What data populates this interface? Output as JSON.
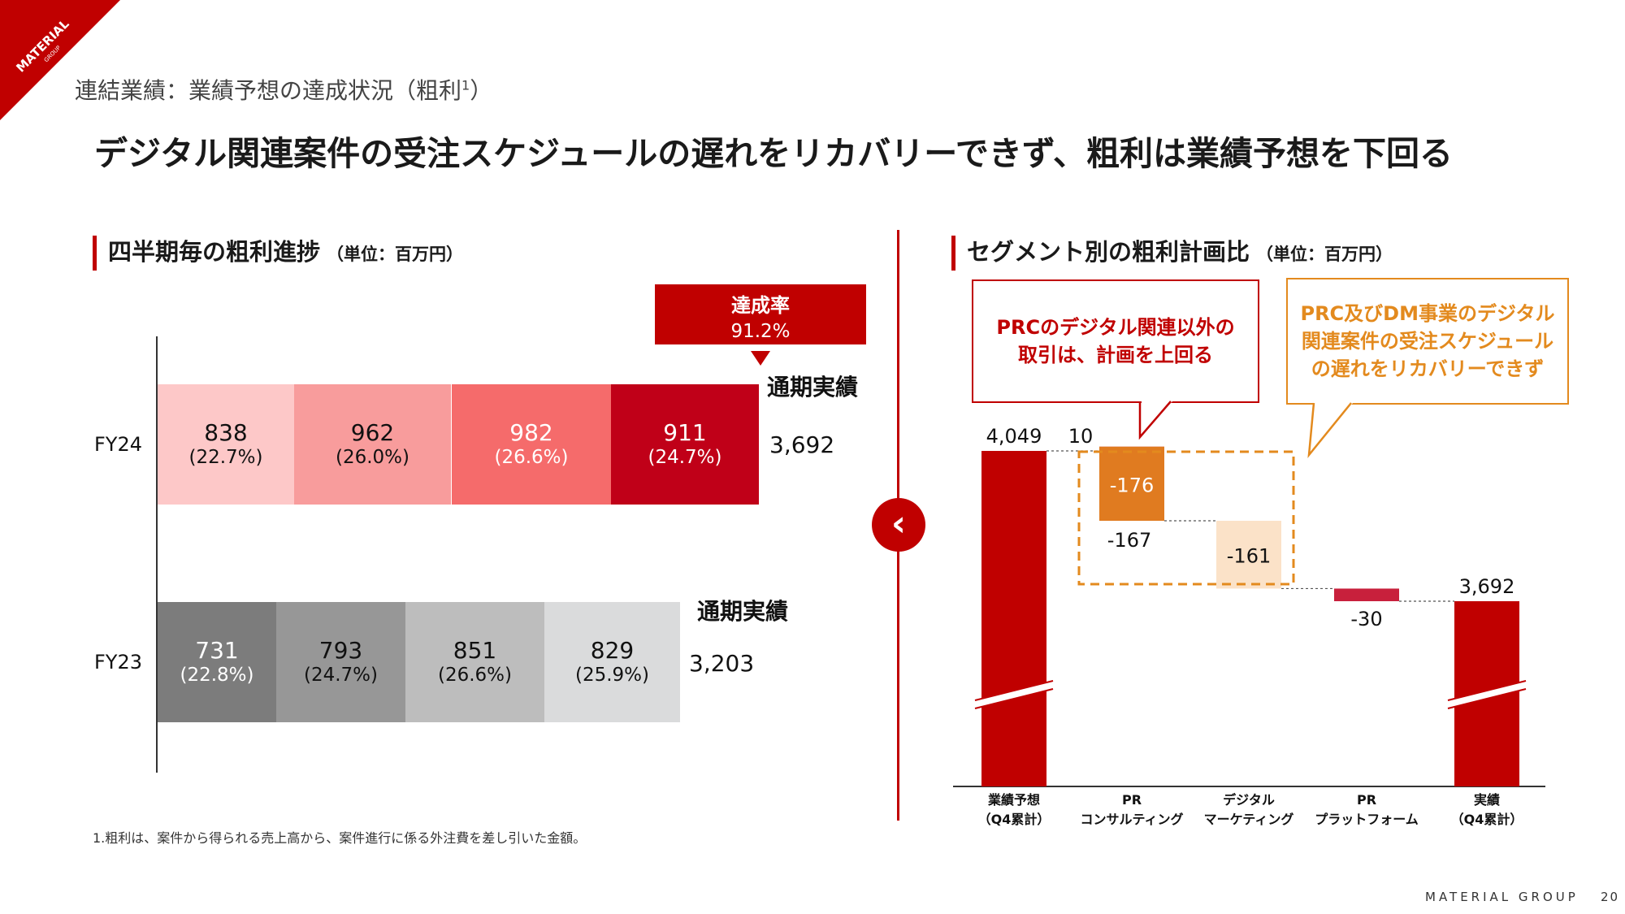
{
  "brand": {
    "corner_logo_text": "MATERIAL",
    "corner_logo_sub": "GROUP",
    "footer": "MATERIAL GROUP",
    "page_number": "20",
    "accent": "#c00000"
  },
  "header": {
    "breadcrumb": "連結業績：業績予想の達成状況（粗利",
    "breadcrumb_sup": "1",
    "breadcrumb_end": "）",
    "headline": "デジタル関連案件の受注スケジュールの遅れをリカバリーできず、粗利は業績予想を下回る"
  },
  "left": {
    "title": "四半期毎の粗利進捗",
    "unit": "（単位：百万円）",
    "achievement": {
      "label": "達成率",
      "value": "91.2%"
    }
  },
  "right": {
    "title": "セグメント別の粗利計画比",
    "unit": "（単位：百万円）",
    "callout1": [
      "PRCのデジタル関連以外の",
      "取引は、計画を上回る"
    ],
    "callout2": [
      "PRC及びDM事業のデジタル",
      "関連案件の受注スケジュール",
      "の遅れをリカバリーできず"
    ]
  },
  "footnote": "1.粗利は、案件から得られる売上高から、案件進行に係る外注費を差し引いた金額。",
  "nav": {
    "icon": "‹"
  },
  "chart_data": [
    {
      "type": "bar",
      "orientation": "horizontal-stacked",
      "title": "四半期毎の粗利進捗",
      "unit": "百万円",
      "rows": [
        {
          "label": "FY24",
          "total": "3,692",
          "total_label": "通期実績",
          "segments": [
            {
              "value": "838",
              "pct": "(22.7%)",
              "color": "#fdc8c8",
              "text": "#111111"
            },
            {
              "value": "962",
              "pct": "(26.0%)",
              "color": "#f89c9c",
              "text": "#111111"
            },
            {
              "value": "982",
              "pct": "(26.6%)",
              "color": "#f56b6b",
              "text": "#ffffff"
            },
            {
              "value": "911",
              "pct": "(24.7%)",
              "color": "#c00018",
              "text": "#ffffff"
            }
          ]
        },
        {
          "label": "FY23",
          "total": "3,203",
          "total_label": "通期実績",
          "segments": [
            {
              "value": "731",
              "pct": "(22.8%)",
              "color": "#7c7c7c",
              "text": "#ffffff"
            },
            {
              "value": "793",
              "pct": "(24.7%)",
              "color": "#979797",
              "text": "#111111"
            },
            {
              "value": "851",
              "pct": "(26.6%)",
              "color": "#bdbdbd",
              "text": "#111111"
            },
            {
              "value": "829",
              "pct": "(25.9%)",
              "color": "#dadbdc",
              "text": "#111111"
            }
          ]
        }
      ]
    },
    {
      "type": "bar",
      "orientation": "waterfall",
      "title": "セグメント別の粗利計画比",
      "unit": "百万円",
      "ylim": [
        3400,
        4100
      ],
      "axis_break": true,
      "steps": [
        {
          "id": "plan",
          "kind": "total",
          "value": 4049,
          "label": "4,049",
          "color": "#c00000",
          "category": [
            "業績予想",
            "（Q4累計）"
          ]
        },
        {
          "id": "prc-up",
          "kind": "delta",
          "value": 10,
          "label": "10",
          "color": "#c00000",
          "category_group": "prc"
        },
        {
          "id": "prc-down",
          "kind": "delta",
          "value": -176,
          "label": "-176",
          "color": "#e07b20",
          "label_inside": true,
          "category_group": "prc"
        },
        {
          "id": "prc-net",
          "kind": "note",
          "value": -167,
          "label": "-167",
          "category_group": "prc"
        },
        {
          "id": "dm",
          "kind": "delta",
          "value": -161,
          "label": "-161",
          "color": "#fbe2c8",
          "label_inside": true,
          "category": [
            "デジタル",
            "マーケティング"
          ]
        },
        {
          "id": "platform",
          "kind": "delta",
          "value": -30,
          "label": "-30",
          "color": "#c8203c",
          "category": [
            "PR",
            "プラットフォーム"
          ]
        },
        {
          "id": "actual",
          "kind": "total",
          "value": 3692,
          "label": "3,692",
          "color": "#c00000",
          "category": [
            "実績",
            "（Q4累計）"
          ]
        }
      ],
      "prc_category": [
        "PR",
        "コンサルティング"
      ],
      "connector_color": "#555555",
      "highlight_box_color": "#e38a1e"
    }
  ]
}
